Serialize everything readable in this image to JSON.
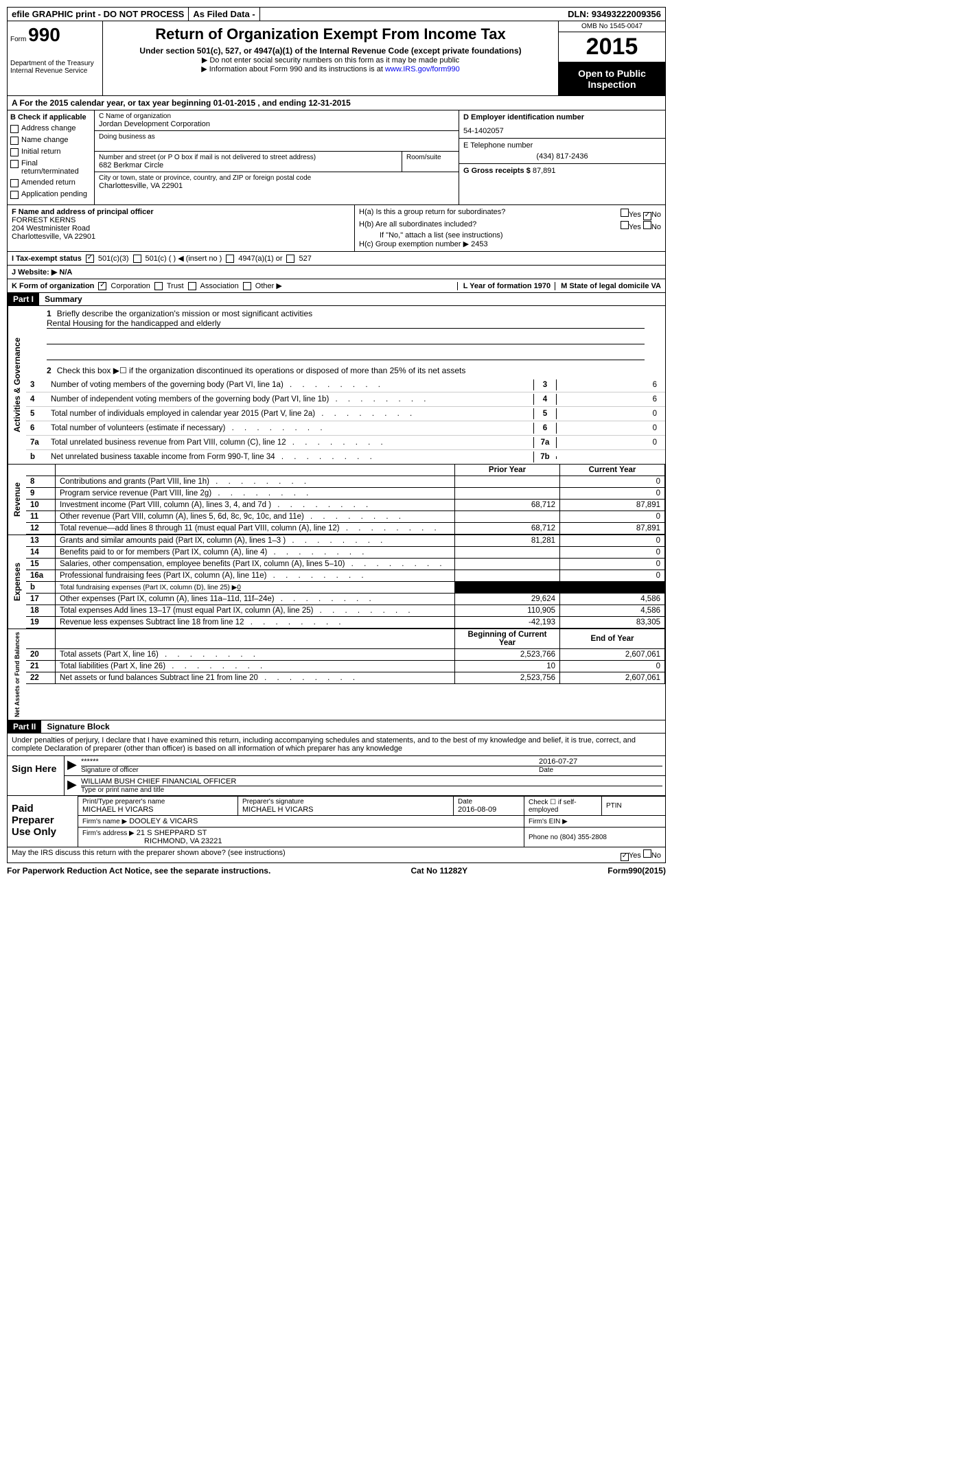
{
  "topbar": {
    "efile": "efile GRAPHIC print - DO NOT PROCESS",
    "asfiled": "As Filed Data -",
    "dln_label": "DLN:",
    "dln": "93493222009356"
  },
  "header": {
    "form_label": "Form",
    "form_num": "990",
    "dept1": "Department of the Treasury",
    "dept2": "Internal Revenue Service",
    "title": "Return of Organization Exempt From Income Tax",
    "subtitle": "Under section 501(c), 527, or 4947(a)(1) of the Internal Revenue Code (except private foundations)",
    "note1": "▶ Do not enter social security numbers on this form as it may be made public",
    "note2_pre": "▶ Information about Form 990 and its instructions is at ",
    "note2_link": "www.IRS.gov/form990",
    "omb": "OMB No 1545-0047",
    "year": "2015",
    "open1": "Open to Public",
    "open2": "Inspection"
  },
  "row_a": "A   For the 2015 calendar year, or tax year beginning 01-01-2015    , and ending 12-31-2015",
  "col_b": {
    "header": "B  Check if applicable",
    "items": [
      "Address change",
      "Name change",
      "Initial return",
      "Final return/terminated",
      "Amended return",
      "Application pending"
    ]
  },
  "col_c": {
    "name_label": "C Name of organization",
    "name": "Jordan Development Corporation",
    "dba_label": "Doing business as",
    "addr_label": "Number and street (or P O  box if mail is not delivered to street address)",
    "room_label": "Room/suite",
    "addr": "682 Berkmar Circle",
    "city_label": "City or town, state or province, country, and ZIP or foreign postal code",
    "city": "Charlottesville, VA  22901"
  },
  "col_d": {
    "d_label": "D Employer identification number",
    "ein": "54-1402057",
    "e_label": "E Telephone number",
    "phone": "(434) 817-2436",
    "g_label": "G Gross receipts $",
    "gross": "87,891"
  },
  "officer": {
    "label": "F    Name and address of principal officer",
    "name": "FORREST KERNS",
    "addr1": "204 Westminister Road",
    "addr2": "Charlottesville, VA  22901"
  },
  "h_section": {
    "ha": "H(a)  Is this a group return for subordinates?",
    "hb": "H(b)  Are all subordinates included?",
    "hb_note": "If \"No,\" attach a list  (see instructions)",
    "hc": "H(c)   Group exemption number ▶  2453",
    "yes": "Yes",
    "no": "No"
  },
  "row_i": {
    "label": "I   Tax-exempt status",
    "o1": "501(c)(3)",
    "o2": "501(c) (  ) ◀ (insert no )",
    "o3": "4947(a)(1) or",
    "o4": "527"
  },
  "row_j": "J  Website: ▶   N/A",
  "row_k": {
    "label": "K Form of organization",
    "o1": "Corporation",
    "o2": "Trust",
    "o3": "Association",
    "o4": "Other ▶",
    "l_label": "L Year of formation  1970",
    "m_label": "M State of legal domicile  VA"
  },
  "part1": {
    "header": "Part I",
    "title": "Summary",
    "q1_label": "1",
    "q1": "Briefly describe the organization's mission or most significant activities",
    "q1_ans": "Rental Housing for the handicapped and elderly",
    "q2_label": "2",
    "q2": "Check this box ▶☐ if the organization discontinued its operations or disposed of more than 25% of its net assets",
    "lines_gov": [
      {
        "n": "3",
        "t": "Number of voting members of the governing body (Part VI, line 1a)",
        "box": "3",
        "v": "6"
      },
      {
        "n": "4",
        "t": "Number of independent voting members of the governing body (Part VI, line 1b)",
        "box": "4",
        "v": "6"
      },
      {
        "n": "5",
        "t": "Total number of individuals employed in calendar year 2015 (Part V, line 2a)",
        "box": "5",
        "v": "0"
      },
      {
        "n": "6",
        "t": "Total number of volunteers (estimate if necessary)",
        "box": "6",
        "v": "0"
      },
      {
        "n": "7a",
        "t": "Total unrelated business revenue from Part VIII, column (C), line 12",
        "box": "7a",
        "v": "0"
      },
      {
        "n": "b",
        "t": "Net unrelated business taxable income from Form 990-T, line 34",
        "box": "7b",
        "v": ""
      }
    ],
    "col_prior": "Prior Year",
    "col_current": "Current Year",
    "revenue": [
      {
        "n": "8",
        "t": "Contributions and grants (Part VIII, line 1h)",
        "p": "",
        "c": "0"
      },
      {
        "n": "9",
        "t": "Program service revenue (Part VIII, line 2g)",
        "p": "",
        "c": "0"
      },
      {
        "n": "10",
        "t": "Investment income (Part VIII, column (A), lines 3, 4, and 7d )",
        "p": "68,712",
        "c": "87,891"
      },
      {
        "n": "11",
        "t": "Other revenue (Part VIII, column (A), lines 5, 6d, 8c, 9c, 10c, and 11e)",
        "p": "",
        "c": "0"
      },
      {
        "n": "12",
        "t": "Total revenue—add lines 8 through 11 (must equal Part VIII, column (A), line 12)",
        "p": "68,712",
        "c": "87,891"
      }
    ],
    "expenses": [
      {
        "n": "13",
        "t": "Grants and similar amounts paid (Part IX, column (A), lines 1–3 )",
        "p": "81,281",
        "c": "0"
      },
      {
        "n": "14",
        "t": "Benefits paid to or for members (Part IX, column (A), line 4)",
        "p": "",
        "c": "0"
      },
      {
        "n": "15",
        "t": "Salaries, other compensation, employee benefits (Part IX, column (A), lines 5–10)",
        "p": "",
        "c": "0"
      },
      {
        "n": "16a",
        "t": "Professional fundraising fees (Part IX, column (A), line 11e)",
        "p": "",
        "c": "0"
      },
      {
        "n": "b",
        "t": "Total fundraising expenses (Part IX, column (D), line 25) ▶",
        "sub": "0",
        "black": true
      },
      {
        "n": "17",
        "t": "Other expenses (Part IX, column (A), lines 11a–11d, 11f–24e)",
        "p": "29,624",
        "c": "4,586"
      },
      {
        "n": "18",
        "t": "Total expenses  Add lines 13–17 (must equal Part IX, column (A), line 25)",
        "p": "110,905",
        "c": "4,586"
      },
      {
        "n": "19",
        "t": "Revenue less expenses  Subtract line 18 from line 12",
        "p": "-42,193",
        "c": "83,305"
      }
    ],
    "col_begin": "Beginning of Current Year",
    "col_end": "End of Year",
    "netassets": [
      {
        "n": "20",
        "t": "Total assets (Part X, line 16)",
        "p": "2,523,766",
        "c": "2,607,061"
      },
      {
        "n": "21",
        "t": "Total liabilities (Part X, line 26)",
        "p": "10",
        "c": "0"
      },
      {
        "n": "22",
        "t": "Net assets or fund balances  Subtract line 21 from line 20",
        "p": "2,523,756",
        "c": "2,607,061"
      }
    ],
    "vlabel_gov": "Activities & Governance",
    "vlabel_rev": "Revenue",
    "vlabel_exp": "Expenses",
    "vlabel_net": "Net Assets or Fund Balances"
  },
  "part2": {
    "header": "Part II",
    "title": "Signature Block",
    "declaration": "Under penalties of perjury, I declare that I have examined this return, including accompanying schedules and statements, and to the best of my knowledge and belief, it is true, correct, and complete  Declaration of preparer (other than officer) is based on all information of which preparer has any knowledge",
    "sign_here": "Sign Here",
    "stars": "******",
    "sig_date": "2016-07-27",
    "sig_label": "Signature of officer",
    "date_label": "Date",
    "name_title": "WILLIAM BUSH  CHIEF FINANCIAL OFFICER",
    "name_label": "Type or print name and title",
    "paid": "Paid Preparer Use Only",
    "prep_name_label": "Print/Type preparer's name",
    "prep_name": "MICHAEL H VICARS",
    "prep_sig_label": "Preparer's signature",
    "prep_sig": "MICHAEL H VICARS",
    "prep_date_label": "Date",
    "prep_date": "2016-08-09",
    "check_label": "Check ☐ if self-employed",
    "ptin_label": "PTIN",
    "firm_name_label": "Firm's name      ▶",
    "firm_name": "DOOLEY & VICARS",
    "firm_ein_label": "Firm's EIN ▶",
    "firm_addr_label": "Firm's address ▶",
    "firm_addr1": "21 S SHEPPARD ST",
    "firm_addr2": "RICHMOND, VA  23221",
    "phone_label": "Phone no  (804) 355-2808",
    "discuss": "May the IRS discuss this return with the preparer shown above? (see instructions)",
    "yes": "Yes",
    "no": "No"
  },
  "footer": {
    "paperwork": "For Paperwork Reduction Act Notice, see the separate instructions.",
    "cat": "Cat No  11282Y",
    "form": "Form990(2015)"
  }
}
